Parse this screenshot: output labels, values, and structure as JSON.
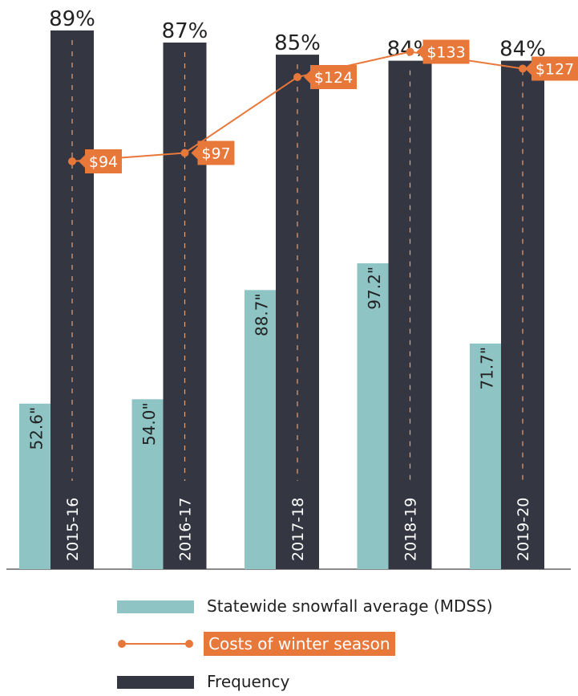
{
  "colors": {
    "snowfall": "#8fc4c5",
    "frequency": "#343641",
    "cost": "#e8773a",
    "axis": "#8a8a8a",
    "dash": "#e8a27a",
    "text": "#222222"
  },
  "chart_data": {
    "type": "bar",
    "categories": [
      "2015-16",
      "2016-17",
      "2017-18",
      "2018-19",
      "2019-20"
    ],
    "series": [
      {
        "key": "snowfall",
        "name": "Statewide snowfall average (MDSS)",
        "type": "bar",
        "values": [
          52.6,
          54.0,
          88.7,
          97.2,
          71.7
        ],
        "labels": [
          "52.6\"",
          "54.0\"",
          "88.7\"",
          "97.2\"",
          "71.7\""
        ]
      },
      {
        "key": "frequency",
        "name": "Frequency",
        "type": "bar",
        "values": [
          89,
          87,
          85,
          84,
          84
        ],
        "labels": [
          "89%",
          "87%",
          "85%",
          "84%",
          "84%"
        ]
      },
      {
        "key": "cost",
        "name": "Costs of winter season",
        "type": "line",
        "values": [
          94,
          97,
          124,
          133,
          127
        ],
        "labels": [
          "$94",
          "$97",
          "$124",
          "$133",
          "$127"
        ]
      }
    ],
    "legend": "bottom"
  },
  "legend": {
    "snowfall_label": "Statewide snowfall average (MDSS)",
    "cost_label": "Costs of winter season",
    "frequency_label": "Frequency"
  }
}
